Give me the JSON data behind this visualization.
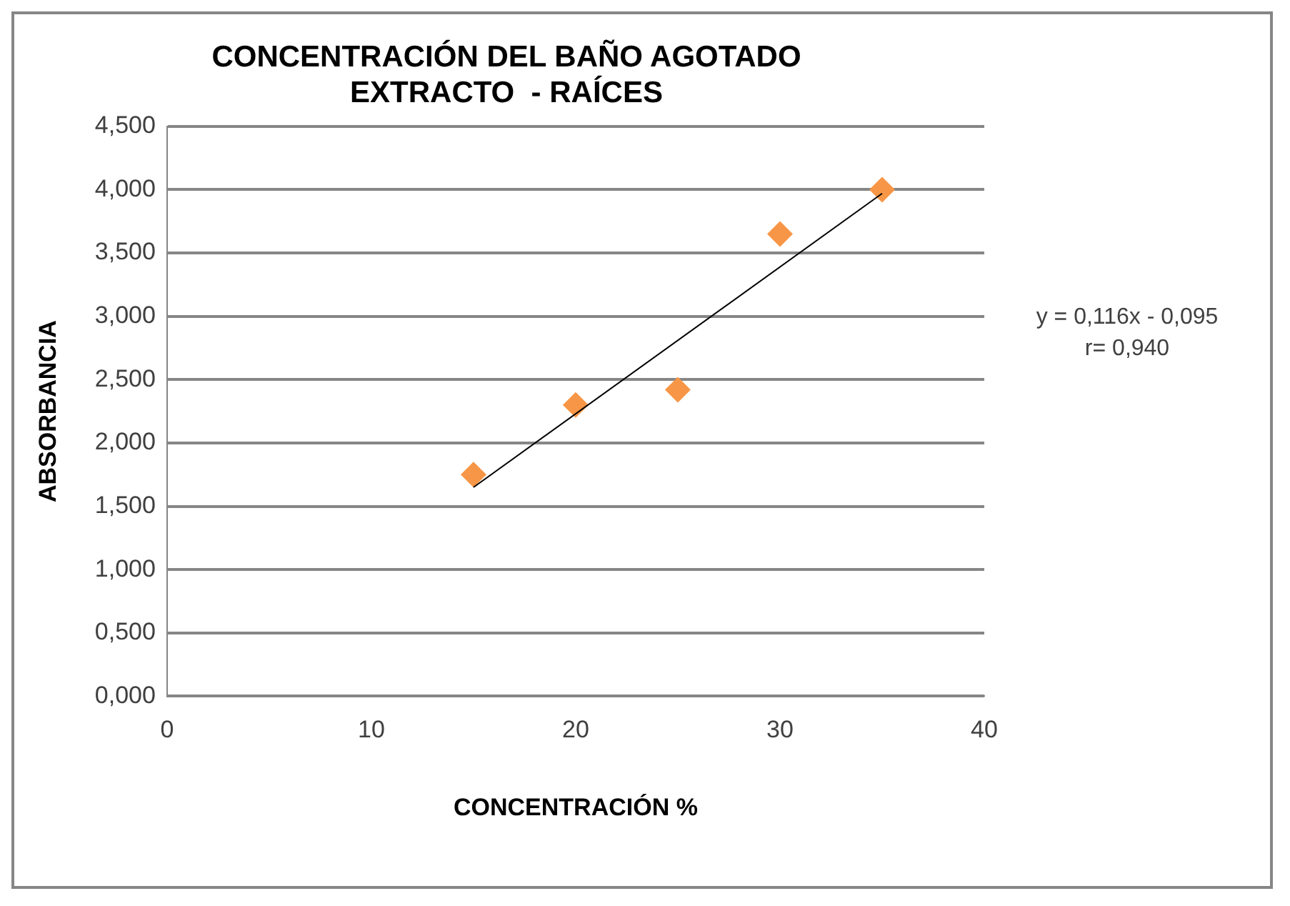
{
  "chart_data": {
    "type": "scatter",
    "title": [
      "CONCENTRACIÓN DEL BAÑO AGOTADO",
      "EXTRACTO  - RAÍCES"
    ],
    "xlabel": "CONCENTRACIÓN %",
    "ylabel": "ABSORBANCIA",
    "x": [
      15,
      20,
      25,
      30,
      35
    ],
    "series": [
      {
        "color": "#f79646",
        "marker": "diamond",
        "values": [
          1.75,
          2.3,
          2.42,
          3.65,
          4.0
        ]
      },
      {
        "type": "line",
        "color": "#000000",
        "marker": "none",
        "x": [
          15,
          35
        ],
        "values": [
          1.65,
          3.97
        ]
      }
    ],
    "xlim": [
      0,
      40
    ],
    "xticks": [
      0,
      10,
      20,
      30,
      40
    ],
    "ylim": [
      0,
      4.5
    ],
    "yticks": [
      {
        "value": 0,
        "label": "0,000"
      },
      {
        "value": 0.5,
        "label": "0,500"
      },
      {
        "value": 1,
        "label": "1,000"
      },
      {
        "value": 1.5,
        "label": "1,500"
      },
      {
        "value": 2,
        "label": "2,000"
      },
      {
        "value": 2.5,
        "label": "2,500"
      },
      {
        "value": 3,
        "label": "3,000"
      },
      {
        "value": 3.5,
        "label": "3,500"
      },
      {
        "value": 4,
        "label": "4,000"
      },
      {
        "value": 4.5,
        "label": "4,500"
      }
    ],
    "grid": "y",
    "legend": false,
    "annotations": [
      "y = 0,116x - 0,095",
      "r= 0,940"
    ]
  }
}
